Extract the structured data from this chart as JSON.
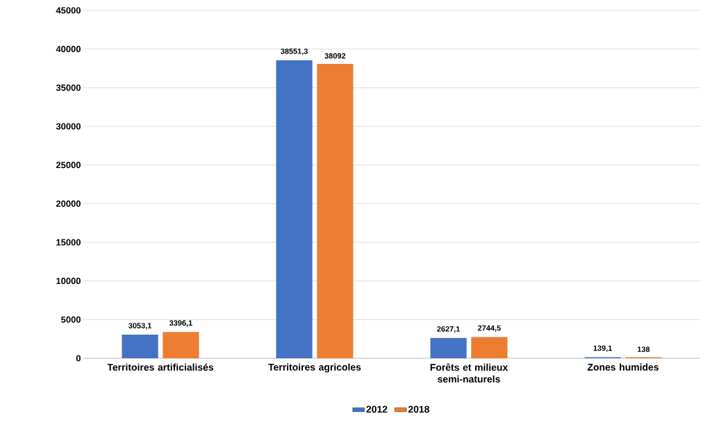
{
  "chart_data": {
    "type": "bar",
    "categories": [
      "Territoires artificialisés",
      "Territoires agricoles",
      "Forêts et milieux semi-naturels",
      "Zones humides"
    ],
    "series": [
      {
        "name": "2012",
        "color": "#4472c4",
        "values": [
          3053.1,
          38551.3,
          2627.1,
          139.1
        ],
        "value_labels": [
          "3053,1",
          "38551,3",
          "2627,1",
          "139,1"
        ]
      },
      {
        "name": "2018",
        "color": "#ed7d31",
        "values": [
          3396.1,
          38092,
          2744.5,
          138
        ],
        "value_labels": [
          "3396,1",
          "38092",
          "2744,5",
          "138"
        ]
      }
    ],
    "ylim": [
      0,
      45000
    ],
    "yticks": [
      0,
      5000,
      10000,
      15000,
      20000,
      25000,
      30000,
      35000,
      40000,
      45000
    ],
    "grid": "y",
    "legend": "bottom"
  }
}
